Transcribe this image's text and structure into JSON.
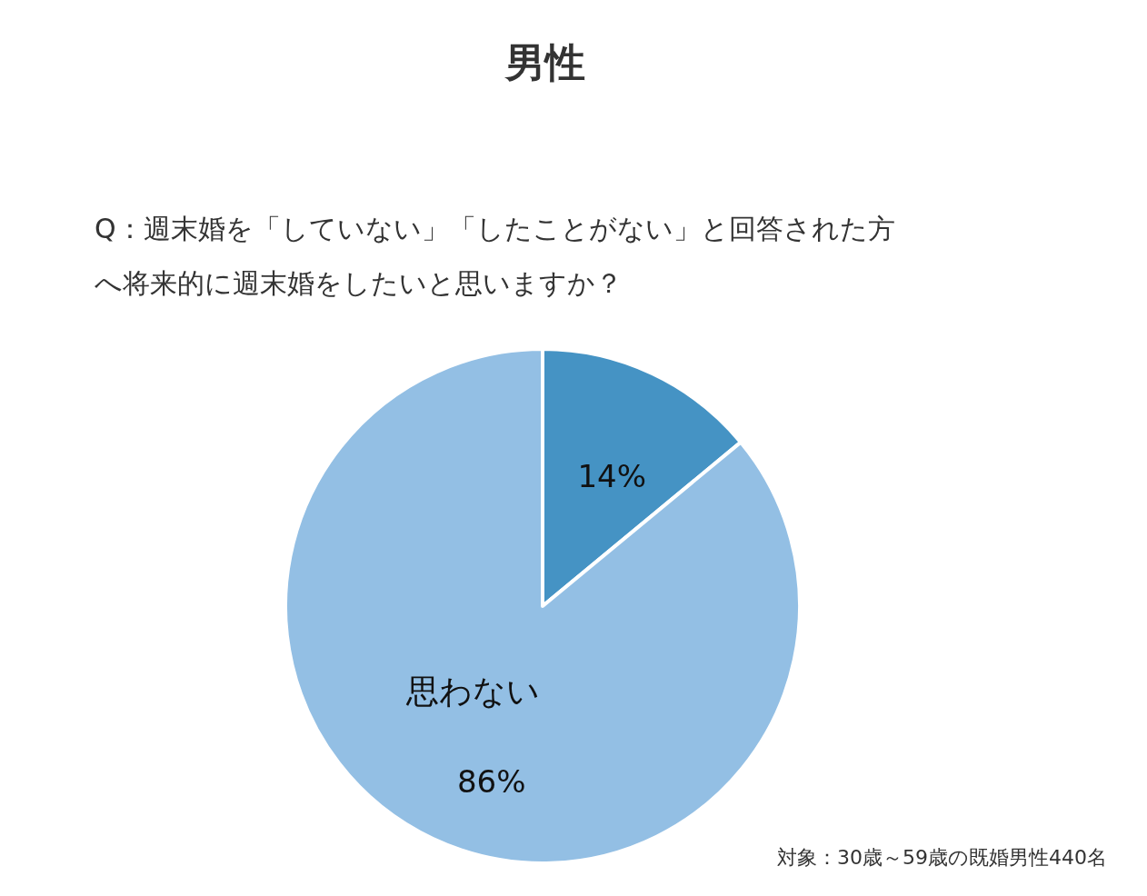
{
  "chart_data": {
    "type": "pie",
    "title": "男性",
    "subtitle": "Q：週末婚を「していない」「したことがない」と回答された方へ将来的に週末婚をしたいと思いますか？",
    "categories": [
      null,
      "思わない"
    ],
    "values": [
      14,
      86
    ],
    "colors": [
      "#4593c4",
      "#93bfe4"
    ],
    "value_labels": [
      "14%",
      "86%"
    ],
    "annotations": [
      "対象：30歳～59歳の既婚男性440名"
    ]
  }
}
